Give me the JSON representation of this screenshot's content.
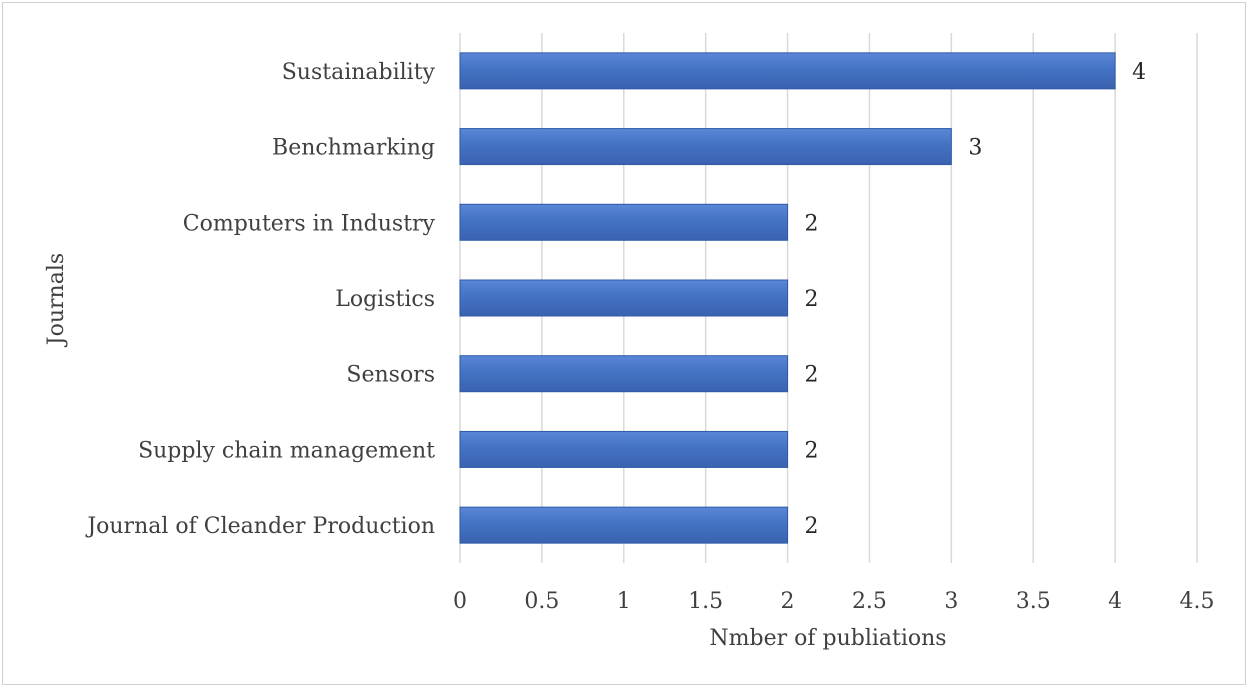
{
  "chart_data": {
    "type": "bar",
    "orientation": "horizontal",
    "categories": [
      "Sustainability",
      "Benchmarking",
      "Computers in Industry",
      "Logistics",
      "Sensors",
      "Supply chain management",
      "Journal of Cleander Production"
    ],
    "values": [
      4,
      3,
      2,
      2,
      2,
      2,
      2
    ],
    "data_labels": [
      "4",
      "3",
      "2",
      "2",
      "2",
      "2",
      "2"
    ],
    "xlabel": "Nmber of publiations",
    "ylabel": "Journals",
    "xlim": [
      0,
      4.5
    ],
    "xticks": [
      "0",
      "0.5",
      "1",
      "1.5",
      "2",
      "2.5",
      "3",
      "3.5",
      "4",
      "4.5"
    ],
    "grid": "vertical",
    "legend": "none",
    "bar_color": "#4472c4",
    "bar_color_dark": "#2f5aa8"
  }
}
